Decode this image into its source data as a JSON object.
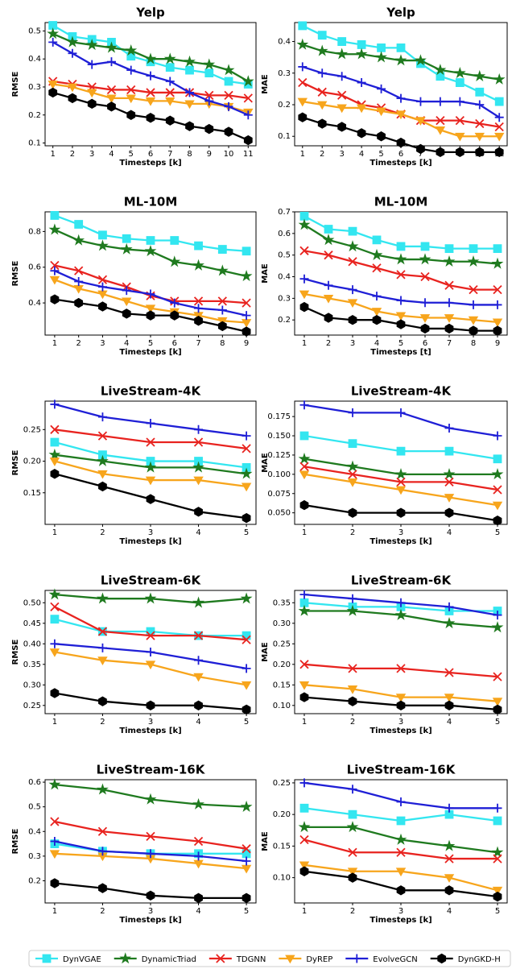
{
  "chart_data": [
    {
      "type": "line",
      "title": "Yelp",
      "xlabel": "Timesteps [k]",
      "ylabel": "RMSE",
      "x": [
        1,
        2,
        3,
        4,
        5,
        6,
        7,
        8,
        9,
        10,
        11
      ],
      "xlim": [
        0.6,
        11.4
      ],
      "xticks": [
        1,
        2,
        3,
        4,
        5,
        6,
        7,
        8,
        9,
        10,
        11
      ],
      "ylim": [
        0.09,
        0.53
      ],
      "yticks": [
        0.1,
        0.2,
        0.3,
        0.4,
        0.5
      ],
      "series": [
        {
          "values": [
            0.52,
            0.48,
            0.47,
            0.46,
            0.41,
            0.39,
            0.37,
            0.36,
            0.35,
            0.32,
            0.31
          ]
        },
        {
          "values": [
            0.49,
            0.46,
            0.45,
            0.44,
            0.43,
            0.4,
            0.4,
            0.39,
            0.38,
            0.36,
            0.32
          ]
        },
        {
          "values": [
            0.32,
            0.31,
            0.3,
            0.29,
            0.29,
            0.28,
            0.28,
            0.28,
            0.27,
            0.27,
            0.26
          ]
        },
        {
          "values": [
            0.31,
            0.3,
            0.28,
            0.26,
            0.26,
            0.25,
            0.25,
            0.24,
            0.24,
            0.23,
            0.21
          ]
        },
        {
          "values": [
            0.46,
            0.42,
            0.38,
            0.39,
            0.36,
            0.34,
            0.32,
            0.28,
            0.25,
            0.23,
            0.2
          ]
        },
        {
          "values": [
            0.28,
            0.26,
            0.24,
            0.23,
            0.2,
            0.19,
            0.18,
            0.16,
            0.15,
            0.14,
            0.11
          ]
        }
      ]
    },
    {
      "type": "line",
      "title": "Yelp",
      "xlabel": "Timesteps [k]",
      "ylabel": "MAE",
      "x": [
        1,
        2,
        3,
        4,
        5,
        6,
        7,
        8,
        9,
        10,
        11
      ],
      "xlim": [
        0.6,
        11.4
      ],
      "xticks": [
        1,
        2,
        3,
        4,
        5,
        6,
        7,
        8,
        9,
        10,
        11
      ],
      "ylim": [
        0.07,
        0.46
      ],
      "yticks": [
        0.1,
        0.2,
        0.3,
        0.4
      ],
      "series": [
        {
          "values": [
            0.45,
            0.42,
            0.4,
            0.39,
            0.38,
            0.38,
            0.33,
            0.29,
            0.27,
            0.24,
            0.21
          ]
        },
        {
          "values": [
            0.39,
            0.37,
            0.36,
            0.36,
            0.35,
            0.34,
            0.34,
            0.31,
            0.3,
            0.29,
            0.28
          ]
        },
        {
          "values": [
            0.27,
            0.24,
            0.23,
            0.2,
            0.19,
            0.17,
            0.15,
            0.15,
            0.15,
            0.14,
            0.13
          ]
        },
        {
          "values": [
            0.21,
            0.2,
            0.19,
            0.19,
            0.18,
            0.17,
            0.15,
            0.12,
            0.1,
            0.1,
            0.1
          ]
        },
        {
          "values": [
            0.32,
            0.3,
            0.29,
            0.27,
            0.25,
            0.22,
            0.21,
            0.21,
            0.21,
            0.2,
            0.16
          ]
        },
        {
          "values": [
            0.16,
            0.14,
            0.13,
            0.11,
            0.1,
            0.08,
            0.06,
            0.05,
            0.05,
            0.05,
            0.05
          ]
        }
      ]
    },
    {
      "type": "line",
      "title": "ML-10M",
      "xlabel": "Timesteps [k]",
      "ylabel": "RMSE",
      "x": [
        1,
        2,
        3,
        4,
        5,
        6,
        7,
        8,
        9
      ],
      "xlim": [
        0.6,
        9.4
      ],
      "xticks": [
        1,
        2,
        3,
        4,
        5,
        6,
        7,
        8,
        9
      ],
      "ylim": [
        0.22,
        0.91
      ],
      "yticks": [
        0.4,
        0.6,
        0.8
      ],
      "series": [
        {
          "values": [
            0.89,
            0.84,
            0.78,
            0.76,
            0.75,
            0.75,
            0.72,
            0.7,
            0.69
          ]
        },
        {
          "values": [
            0.81,
            0.75,
            0.72,
            0.7,
            0.69,
            0.63,
            0.61,
            0.58,
            0.55
          ]
        },
        {
          "values": [
            0.61,
            0.58,
            0.53,
            0.49,
            0.44,
            0.41,
            0.41,
            0.41,
            0.4
          ]
        },
        {
          "values": [
            0.53,
            0.48,
            0.45,
            0.41,
            0.37,
            0.35,
            0.33,
            0.3,
            0.29
          ]
        },
        {
          "values": [
            0.58,
            0.52,
            0.49,
            0.47,
            0.45,
            0.4,
            0.37,
            0.36,
            0.33
          ]
        },
        {
          "values": [
            0.42,
            0.4,
            0.38,
            0.34,
            0.33,
            0.33,
            0.3,
            0.27,
            0.24
          ]
        }
      ]
    },
    {
      "type": "line",
      "title": "ML-10M",
      "xlabel": "Timesteps [t]",
      "ylabel": "MAE",
      "x": [
        1,
        2,
        3,
        4,
        5,
        6,
        7,
        8,
        9
      ],
      "xlim": [
        0.6,
        9.4
      ],
      "xticks": [
        1,
        2,
        3,
        4,
        5,
        6,
        7,
        8,
        9
      ],
      "ylim": [
        0.13,
        0.7
      ],
      "yticks": [
        0.2,
        0.3,
        0.4,
        0.5,
        0.6,
        0.7
      ],
      "series": [
        {
          "values": [
            0.68,
            0.62,
            0.61,
            0.57,
            0.54,
            0.54,
            0.53,
            0.53,
            0.53
          ]
        },
        {
          "values": [
            0.64,
            0.57,
            0.54,
            0.5,
            0.48,
            0.48,
            0.47,
            0.47,
            0.46
          ]
        },
        {
          "values": [
            0.52,
            0.5,
            0.47,
            0.44,
            0.41,
            0.4,
            0.36,
            0.34,
            0.34
          ]
        },
        {
          "values": [
            0.32,
            0.3,
            0.28,
            0.24,
            0.22,
            0.21,
            0.21,
            0.2,
            0.19
          ]
        },
        {
          "values": [
            0.39,
            0.36,
            0.34,
            0.31,
            0.29,
            0.28,
            0.28,
            0.27,
            0.27
          ]
        },
        {
          "values": [
            0.26,
            0.21,
            0.2,
            0.2,
            0.18,
            0.16,
            0.16,
            0.15,
            0.15
          ]
        }
      ]
    },
    {
      "type": "line",
      "title": "LiveStream-4K",
      "xlabel": "Timesteps [k]",
      "ylabel": "RMSE",
      "x": [
        1,
        2,
        3,
        4,
        5
      ],
      "xlim": [
        0.8,
        5.2
      ],
      "xticks": [
        1,
        2,
        3,
        4,
        5
      ],
      "ylim": [
        0.1,
        0.295
      ],
      "yticks": [
        {
          "value": 0.15,
          "label": "0.15"
        },
        {
          "value": 0.2,
          "label": "0.20"
        },
        {
          "value": 0.25,
          "label": "0.25"
        }
      ],
      "series": [
        {
          "values": [
            0.23,
            0.21,
            0.2,
            0.2,
            0.19
          ]
        },
        {
          "values": [
            0.21,
            0.2,
            0.19,
            0.19,
            0.18
          ]
        },
        {
          "values": [
            0.25,
            0.24,
            0.23,
            0.23,
            0.22
          ]
        },
        {
          "values": [
            0.2,
            0.18,
            0.17,
            0.17,
            0.16
          ]
        },
        {
          "values": [
            0.29,
            0.27,
            0.26,
            0.25,
            0.24
          ]
        },
        {
          "values": [
            0.18,
            0.16,
            0.14,
            0.12,
            0.11
          ]
        }
      ]
    },
    {
      "type": "line",
      "title": "LiveStream-4K",
      "xlabel": "Timesteps [k]",
      "ylabel": "MAE",
      "x": [
        1,
        2,
        3,
        4,
        5
      ],
      "xlim": [
        0.8,
        5.2
      ],
      "xticks": [
        1,
        2,
        3,
        4,
        5
      ],
      "ylim": [
        0.035,
        0.195
      ],
      "yticks": [
        {
          "value": 0.05,
          "label": "0.050"
        },
        0.075,
        {
          "value": 0.1,
          "label": "0.100"
        },
        0.125,
        {
          "value": 0.15,
          "label": "0.150"
        },
        0.175
      ],
      "series": [
        {
          "values": [
            0.15,
            0.14,
            0.13,
            0.13,
            0.12
          ]
        },
        {
          "values": [
            0.12,
            0.11,
            0.1,
            0.1,
            0.1
          ]
        },
        {
          "values": [
            0.11,
            0.1,
            0.09,
            0.09,
            0.08
          ]
        },
        {
          "values": [
            0.1,
            0.09,
            0.08,
            0.07,
            0.06
          ]
        },
        {
          "values": [
            0.19,
            0.18,
            0.18,
            0.16,
            0.15
          ]
        },
        {
          "values": [
            0.06,
            0.05,
            0.05,
            0.05,
            0.04
          ]
        }
      ]
    },
    {
      "type": "line",
      "title": "LiveStream-6K",
      "xlabel": "Timesteps [k]",
      "ylabel": "RMSE",
      "x": [
        1,
        2,
        3,
        4,
        5
      ],
      "xlim": [
        0.8,
        5.2
      ],
      "xticks": [
        1,
        2,
        3,
        4,
        5
      ],
      "ylim": [
        0.23,
        0.53
      ],
      "yticks": [
        0.25,
        {
          "value": 0.3,
          "label": "0.30"
        },
        0.35,
        {
          "value": 0.4,
          "label": "0.40"
        },
        0.45,
        {
          "value": 0.5,
          "label": "0.50"
        }
      ],
      "series": [
        {
          "values": [
            0.46,
            0.43,
            0.43,
            0.42,
            0.42
          ]
        },
        {
          "values": [
            0.52,
            0.51,
            0.51,
            0.5,
            0.51
          ]
        },
        {
          "values": [
            0.49,
            0.43,
            0.42,
            0.42,
            0.41
          ]
        },
        {
          "values": [
            0.38,
            0.36,
            0.35,
            0.32,
            0.3
          ]
        },
        {
          "values": [
            0.4,
            0.39,
            0.38,
            0.36,
            0.34
          ]
        },
        {
          "values": [
            0.28,
            0.26,
            0.25,
            0.25,
            0.24
          ]
        }
      ]
    },
    {
      "type": "line",
      "title": "LiveStream-6K",
      "xlabel": "Timesteps [k]",
      "ylabel": "MAE",
      "x": [
        1,
        2,
        3,
        4,
        5
      ],
      "xlim": [
        0.8,
        5.2
      ],
      "xticks": [
        1,
        2,
        3,
        4,
        5
      ],
      "ylim": [
        0.08,
        0.38
      ],
      "yticks": [
        {
          "value": 0.1,
          "label": "0.10"
        },
        0.15,
        {
          "value": 0.2,
          "label": "0.20"
        },
        0.25,
        {
          "value": 0.3,
          "label": "0.30"
        },
        0.35
      ],
      "series": [
        {
          "values": [
            0.35,
            0.34,
            0.34,
            0.33,
            0.33
          ]
        },
        {
          "values": [
            0.33,
            0.33,
            0.32,
            0.3,
            0.29
          ]
        },
        {
          "values": [
            0.2,
            0.19,
            0.19,
            0.18,
            0.17
          ]
        },
        {
          "values": [
            0.15,
            0.14,
            0.12,
            0.12,
            0.11
          ]
        },
        {
          "values": [
            0.37,
            0.36,
            0.35,
            0.34,
            0.32
          ]
        },
        {
          "values": [
            0.12,
            0.11,
            0.1,
            0.1,
            0.09
          ]
        }
      ]
    },
    {
      "type": "line",
      "title": "LiveStream-16K",
      "xlabel": "Timesteps [k]",
      "ylabel": "RMSE",
      "x": [
        1,
        2,
        3,
        4,
        5
      ],
      "xlim": [
        0.8,
        5.2
      ],
      "xticks": [
        1,
        2,
        3,
        4,
        5
      ],
      "ylim": [
        0.11,
        0.61
      ],
      "yticks": [
        0.2,
        0.3,
        0.4,
        0.5,
        0.6
      ],
      "series": [
        {
          "values": [
            0.35,
            0.32,
            0.31,
            0.31,
            0.31
          ]
        },
        {
          "values": [
            0.59,
            0.57,
            0.53,
            0.51,
            0.5
          ]
        },
        {
          "values": [
            0.44,
            0.4,
            0.38,
            0.36,
            0.33
          ]
        },
        {
          "values": [
            0.31,
            0.3,
            0.29,
            0.27,
            0.25
          ]
        },
        {
          "values": [
            0.36,
            0.32,
            0.31,
            0.3,
            0.28
          ]
        },
        {
          "values": [
            0.19,
            0.17,
            0.14,
            0.13,
            0.13
          ]
        }
      ]
    },
    {
      "type": "line",
      "title": "LiveStream-16K",
      "xlabel": "Timesteps [k]",
      "ylabel": "MAE",
      "x": [
        1,
        2,
        3,
        4,
        5
      ],
      "xlim": [
        0.8,
        5.2
      ],
      "xticks": [
        1,
        2,
        3,
        4,
        5
      ],
      "ylim": [
        0.06,
        0.255
      ],
      "yticks": [
        {
          "value": 0.1,
          "label": "0.10"
        },
        0.15,
        {
          "value": 0.2,
          "label": "0.20"
        },
        0.25
      ],
      "series": [
        {
          "values": [
            0.21,
            0.2,
            0.19,
            0.2,
            0.19
          ]
        },
        {
          "values": [
            0.18,
            0.18,
            0.16,
            0.15,
            0.14
          ]
        },
        {
          "values": [
            0.16,
            0.14,
            0.14,
            0.13,
            0.13
          ]
        },
        {
          "values": [
            0.12,
            0.11,
            0.11,
            0.1,
            0.08
          ]
        },
        {
          "values": [
            0.25,
            0.24,
            0.22,
            0.21,
            0.21
          ]
        },
        {
          "values": [
            0.11,
            0.1,
            0.08,
            0.08,
            0.07
          ]
        }
      ]
    }
  ],
  "legend": [
    {
      "name": "DynVGAE",
      "color": "#33e6f0",
      "marker": "square"
    },
    {
      "name": "DynamicTriad",
      "color": "#1f7a1f",
      "marker": "star"
    },
    {
      "name": "TDGNN",
      "color": "#e8231f",
      "marker": "x"
    },
    {
      "name": "DyREP",
      "color": "#f7a51c",
      "marker": "triangle-down"
    },
    {
      "name": "EvolveGCN",
      "color": "#1f1fd6",
      "marker": "plus"
    },
    {
      "name": "DynGKD-H",
      "color": "#000000",
      "marker": "hexagon"
    }
  ]
}
